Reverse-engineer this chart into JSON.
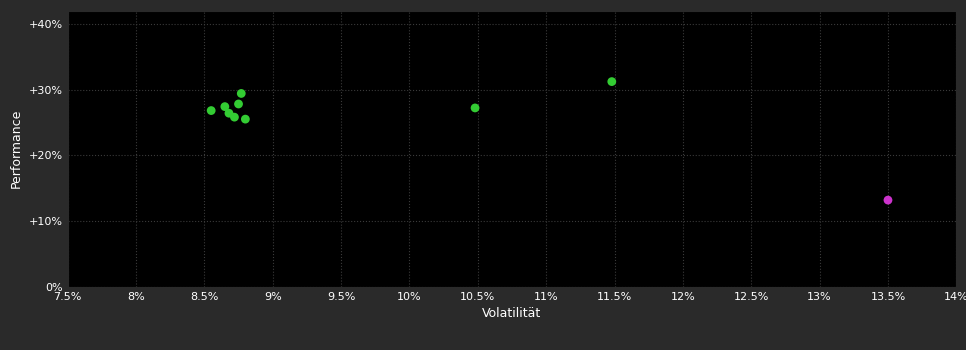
{
  "background_color": "#2a2a2a",
  "plot_bg_color": "#000000",
  "grid_color": "#3a3a3a",
  "text_color": "#ffffff",
  "xlabel": "Volatilität",
  "ylabel": "Performance",
  "xlim": [
    0.075,
    0.14
  ],
  "ylim": [
    0.0,
    0.42
  ],
  "xticks": [
    0.075,
    0.08,
    0.085,
    0.09,
    0.095,
    0.1,
    0.105,
    0.11,
    0.115,
    0.12,
    0.125,
    0.13,
    0.135,
    0.14
  ],
  "yticks": [
    0.0,
    0.1,
    0.2,
    0.3,
    0.4
  ],
  "ytick_labels": [
    "0%",
    "+10%",
    "+20%",
    "+30%",
    "+40%"
  ],
  "xtick_labels": [
    "7.5%",
    "8%",
    "8.5%",
    "9%",
    "9.5%",
    "10%",
    "10.5%",
    "11%",
    "11.5%",
    "12%",
    "12.5%",
    "13%",
    "13.5%",
    "14%"
  ],
  "green_points": [
    [
      0.0877,
      0.294
    ],
    [
      0.0875,
      0.278
    ],
    [
      0.0865,
      0.274
    ],
    [
      0.0855,
      0.268
    ],
    [
      0.0868,
      0.264
    ],
    [
      0.0872,
      0.258
    ],
    [
      0.088,
      0.255
    ],
    [
      0.1048,
      0.272
    ],
    [
      0.1148,
      0.312
    ]
  ],
  "magenta_points": [
    [
      0.135,
      0.132
    ]
  ],
  "green_color": "#33cc33",
  "magenta_color": "#cc33cc",
  "marker_size": 40
}
